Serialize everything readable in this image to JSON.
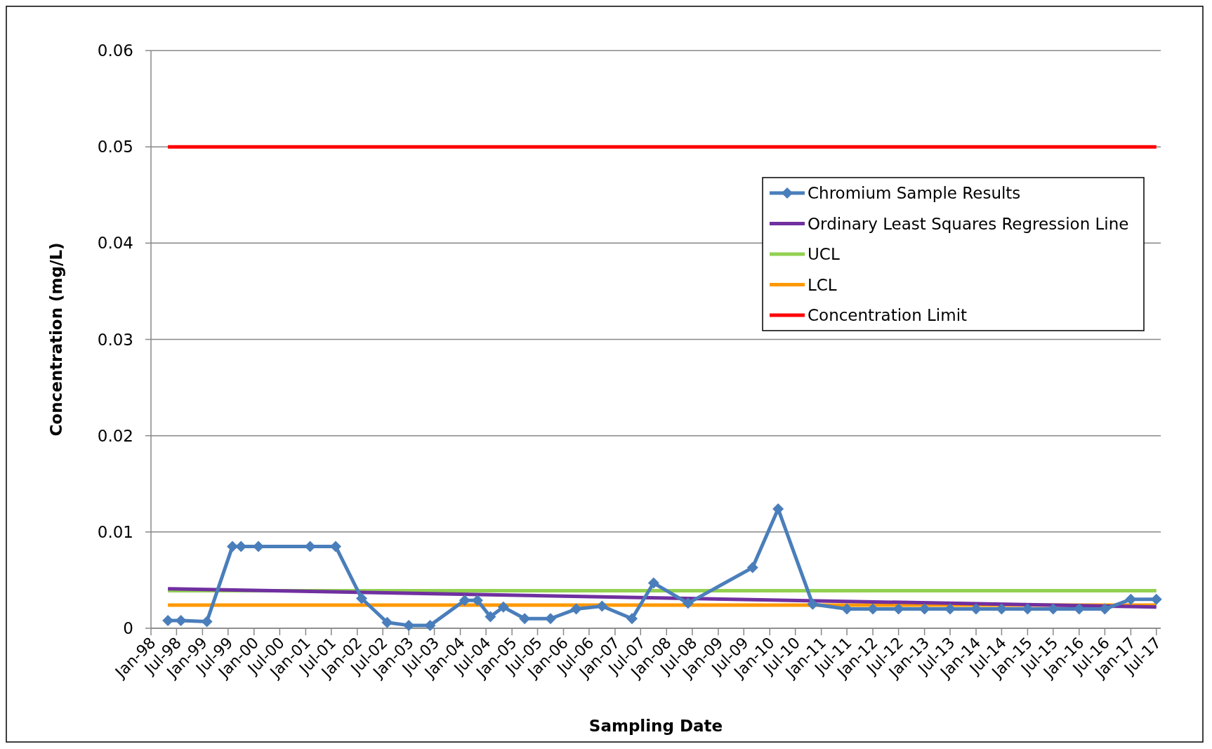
{
  "chart_data": {
    "type": "line",
    "xlabel": "Sampling Date",
    "ylabel": "Concentration (mg/L)",
    "xlim": [
      "1998-01",
      "2017-08"
    ],
    "xticks": [
      {
        "value": "1998-01",
        "label": "Jan-98"
      },
      {
        "value": "1998-07",
        "label": "Jul-98"
      },
      {
        "value": "1999-01",
        "label": "Jan-99"
      },
      {
        "value": "1999-07",
        "label": "Jul-99"
      },
      {
        "value": "2000-01",
        "label": "Jan-00"
      },
      {
        "value": "2000-07",
        "label": "Jul-00"
      },
      {
        "value": "2001-01",
        "label": "Jan-01"
      },
      {
        "value": "2001-07",
        "label": "Jul-01"
      },
      {
        "value": "2002-01",
        "label": "Jan-02"
      },
      {
        "value": "2002-07",
        "label": "Jul-02"
      },
      {
        "value": "2003-01",
        "label": "Jan-03"
      },
      {
        "value": "2003-07",
        "label": "Jul-03"
      },
      {
        "value": "2004-01",
        "label": "Jan-04"
      },
      {
        "value": "2004-07",
        "label": "Jul-04"
      },
      {
        "value": "2005-01",
        "label": "Jan-05"
      },
      {
        "value": "2005-07",
        "label": "Jul-05"
      },
      {
        "value": "2006-01",
        "label": "Jan-06"
      },
      {
        "value": "2006-07",
        "label": "Jul-06"
      },
      {
        "value": "2007-01",
        "label": "Jan-07"
      },
      {
        "value": "2007-07",
        "label": "Jul-07"
      },
      {
        "value": "2008-01",
        "label": "Jan-08"
      },
      {
        "value": "2008-07",
        "label": "Jul-08"
      },
      {
        "value": "2009-01",
        "label": "Jan-09"
      },
      {
        "value": "2009-07",
        "label": "Jul-09"
      },
      {
        "value": "2010-01",
        "label": "Jan-10"
      },
      {
        "value": "2010-07",
        "label": "Jul-10"
      },
      {
        "value": "2011-01",
        "label": "Jan-11"
      },
      {
        "value": "2011-07",
        "label": "Jul-11"
      },
      {
        "value": "2012-01",
        "label": "Jan-12"
      },
      {
        "value": "2012-07",
        "label": "Jul-12"
      },
      {
        "value": "2013-01",
        "label": "Jan-13"
      },
      {
        "value": "2013-07",
        "label": "Jul-13"
      },
      {
        "value": "2014-01",
        "label": "Jan-14"
      },
      {
        "value": "2014-07",
        "label": "Jul-14"
      },
      {
        "value": "2015-01",
        "label": "Jan-15"
      },
      {
        "value": "2015-07",
        "label": "Jul-15"
      },
      {
        "value": "2016-01",
        "label": "Jan-16"
      },
      {
        "value": "2016-07",
        "label": "Jul-16"
      },
      {
        "value": "2017-01",
        "label": "Jan-17"
      },
      {
        "value": "2017-07",
        "label": "Jul-17"
      }
    ],
    "ylim": [
      0,
      0.06
    ],
    "yticks": [
      0,
      0.01,
      0.02,
      0.03,
      0.04,
      0.05,
      0.06
    ],
    "grid": "y",
    "legend": "top right",
    "series": [
      {
        "name": "Chromium Sample Results",
        "color": "#4a7ebb",
        "marker": "diamond",
        "x": [
          "1998-05",
          "1998-08",
          "1999-02",
          "1999-08",
          "1999-10",
          "2000-02",
          "2001-02",
          "2001-08",
          "2002-02",
          "2002-08",
          "2003-01",
          "2003-06",
          "2004-02",
          "2004-05",
          "2004-08",
          "2004-11",
          "2005-04",
          "2005-10",
          "2006-04",
          "2006-10",
          "2007-05",
          "2007-10",
          "2008-06",
          "2009-09",
          "2010-03",
          "2010-11",
          "2011-07",
          "2012-01",
          "2012-07",
          "2013-01",
          "2013-07",
          "2014-01",
          "2014-07",
          "2015-01",
          "2015-07",
          "2016-01",
          "2016-07",
          "2017-01",
          "2017-07"
        ],
        "values": [
          0.0008,
          0.0008,
          0.0007,
          0.0085,
          0.0085,
          0.0085,
          0.0085,
          0.0085,
          0.0031,
          0.0006,
          0.0003,
          0.0003,
          0.0029,
          0.0029,
          0.0012,
          0.0022,
          0.001,
          0.001,
          0.002,
          0.0023,
          0.001,
          0.0047,
          0.0026,
          0.0063,
          0.0124,
          0.0025,
          0.002,
          0.002,
          0.002,
          0.002,
          0.002,
          0.002,
          0.002,
          0.002,
          0.002,
          0.002,
          0.002,
          0.003,
          0.003
        ]
      },
      {
        "name": "Ordinary Least Squares Regression Line",
        "color": "#7030a0",
        "marker": "none",
        "x": [
          "1998-05",
          "2017-07"
        ],
        "values": [
          0.0041,
          0.0022
        ]
      },
      {
        "name": "UCL",
        "color": "#92d050",
        "marker": "none",
        "x": [
          "1998-05",
          "2017-07"
        ],
        "values": [
          0.0039,
          0.0039
        ]
      },
      {
        "name": "LCL",
        "color": "#ff9900",
        "marker": "none",
        "x": [
          "1998-05",
          "2017-07"
        ],
        "values": [
          0.0024,
          0.0024
        ]
      },
      {
        "name": "Concentration Limit",
        "color": "#ff0000",
        "marker": "none",
        "x": [
          "1998-05",
          "2017-07"
        ],
        "values": [
          0.05,
          0.05
        ]
      }
    ]
  }
}
